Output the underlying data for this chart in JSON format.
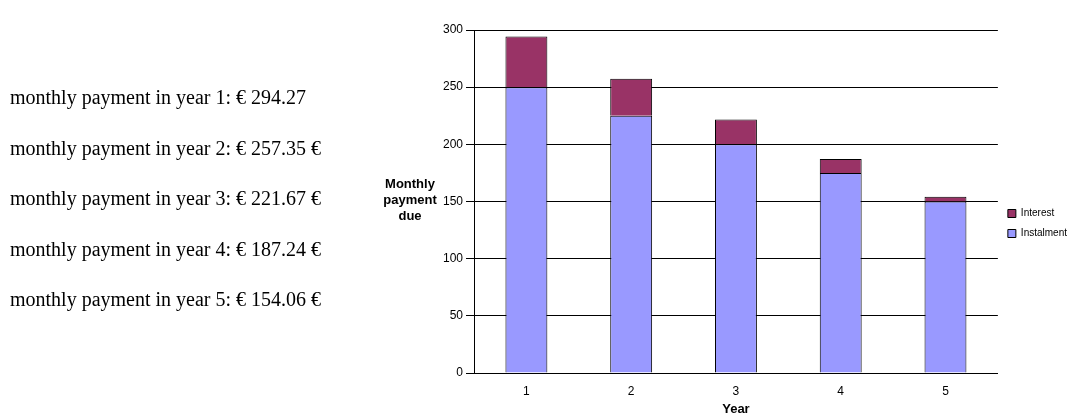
{
  "chart_data": {
    "type": "bar",
    "stacked": true,
    "xlabel": "Year",
    "ylabel": "Monthly payment due",
    "categories": [
      "1",
      "2",
      "3",
      "4",
      "5"
    ],
    "series": [
      {
        "name": "Instalment",
        "color": "#9999ff",
        "values": [
          250,
          225,
          200,
          175,
          150
        ]
      },
      {
        "name": "Interest",
        "color": "#993366",
        "values": [
          44.27,
          32.35,
          21.67,
          12.24,
          4.06
        ]
      }
    ],
    "ylim": [
      0,
      300
    ],
    "yticks": [
      0,
      50,
      100,
      150,
      200,
      250,
      300
    ],
    "grid": "y",
    "legend": "right",
    "annotations": [
      "monthly payment in year 1: € 294.27",
      "monthly payment in year 2: € 257.35 €",
      "monthly payment in year 3: € 221.67 €",
      "monthly payment in year 4: € 187.24 €",
      "monthly payment in year 5: € 154.06 €"
    ]
  }
}
